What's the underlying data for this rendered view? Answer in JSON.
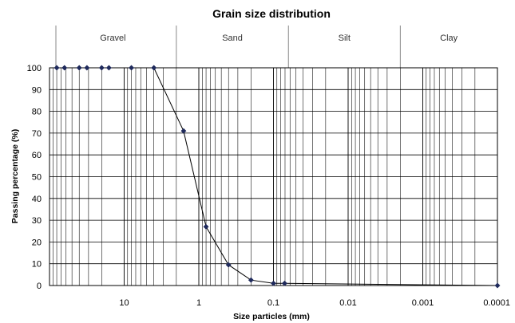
{
  "chart_data": {
    "type": "line",
    "title": "Grain size distribution",
    "xlabel": "Size particles (mm)",
    "ylabel": "Passing percentage (%)",
    "x_scale": "log",
    "x_reversed": true,
    "xlim": [
      100,
      0.0001
    ],
    "ylim": [
      0,
      100
    ],
    "ytick_step": 10,
    "grid": true,
    "x_tick_labels": [
      {
        "value": 10,
        "label": "10"
      },
      {
        "value": 1,
        "label": "1"
      },
      {
        "value": 0.1,
        "label": "0.1"
      },
      {
        "value": 0.01,
        "label": "0.01"
      },
      {
        "value": 0.001,
        "label": "0.001"
      },
      {
        "value": 0.0001,
        "label": "0.0001"
      }
    ],
    "bands": [
      {
        "label": "Gravel",
        "from": 100,
        "to": 2
      },
      {
        "label": "Sand",
        "from": 2,
        "to": 0.063
      },
      {
        "label": "Silt",
        "from": 0.063,
        "to": 0.002
      },
      {
        "label": "Clay",
        "from": 0.002,
        "to": 0.0001
      }
    ],
    "series": [
      {
        "color": "#1f2a5c",
        "points": [
          {
            "x": 80,
            "y": 100
          },
          {
            "x": 63,
            "y": 100
          },
          {
            "x": 40,
            "y": 100
          },
          {
            "x": 31.5,
            "y": 100
          },
          {
            "x": 20,
            "y": 100
          },
          {
            "x": 16,
            "y": 100
          },
          {
            "x": 8,
            "y": 100
          },
          {
            "x": 4,
            "y": 100
          },
          {
            "x": 1.6,
            "y": 71
          },
          {
            "x": 0.8,
            "y": 27
          },
          {
            "x": 0.4,
            "y": 9.5
          },
          {
            "x": 0.2,
            "y": 2.5
          },
          {
            "x": 0.1,
            "y": 1
          },
          {
            "x": 0.071,
            "y": 1
          },
          {
            "x": 0.0001,
            "y": 0
          }
        ]
      }
    ]
  }
}
